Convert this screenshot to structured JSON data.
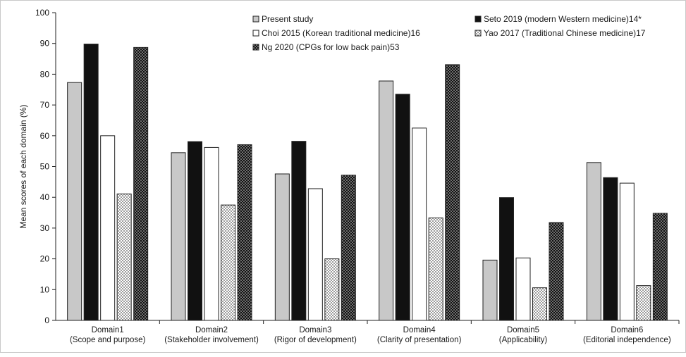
{
  "chart_data": {
    "type": "bar",
    "ylabel": "Mean scores of each domain (%)",
    "xlabel": "",
    "ylim": [
      0,
      100
    ],
    "yticks": [
      0,
      10,
      20,
      30,
      40,
      50,
      60,
      70,
      80,
      90,
      100
    ],
    "grid": false,
    "legend_position": "top",
    "categories": [
      [
        "Domain1",
        "(Scope and purpose)"
      ],
      [
        "Domain2",
        "(Stakeholder involvement)"
      ],
      [
        "Domain3",
        "(Rigor of development)"
      ],
      [
        "Domain4",
        "(Clarity of presentation)"
      ],
      [
        "Domain5",
        "(Applicability)"
      ],
      [
        "Domain6",
        "(Editorial independence)"
      ]
    ],
    "series": [
      {
        "name": "Present study",
        "fill": "gray",
        "values": [
          77.3,
          54.5,
          47.6,
          77.8,
          19.6,
          51.3
        ]
      },
      {
        "name": "Seto 2019 (modern Western medicine)14*",
        "fill": "black",
        "values": [
          89.8,
          58.1,
          58.2,
          73.5,
          39.9,
          46.4
        ]
      },
      {
        "name": "Choi 2015 (Korean traditional medicine)16",
        "fill": "white",
        "values": [
          60.0,
          56.2,
          42.8,
          62.5,
          20.3,
          44.6
        ]
      },
      {
        "name": "Yao 2017 (Traditional Chinese medicine)17",
        "fill": "dots-light",
        "values": [
          41.1,
          37.5,
          20.0,
          33.3,
          10.6,
          11.3
        ]
      },
      {
        "name": "Ng 2020 (CPGs for low back pain)53",
        "fill": "dots-dark",
        "values": [
          88.7,
          57.1,
          47.2,
          83.1,
          31.8,
          34.8
        ]
      }
    ],
    "colors": {
      "gray": "#c8c8c8",
      "black": "#111111",
      "white": "#ffffff",
      "border": "#222222"
    }
  }
}
